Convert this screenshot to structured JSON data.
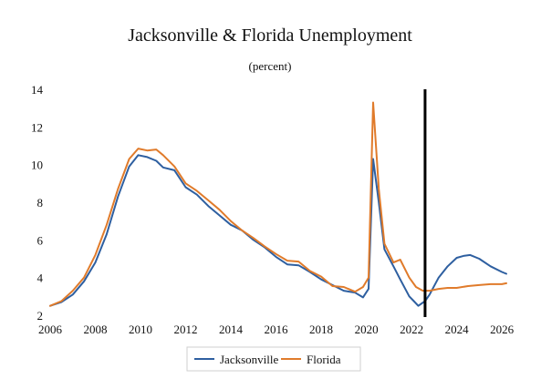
{
  "chart_data": {
    "type": "line",
    "title": "Jacksonville & Florida Unemployment",
    "subtitle": "(percent)",
    "xlabel": "",
    "ylabel": "",
    "xlim": [
      2006,
      2026.4
    ],
    "ylim": [
      2,
      14
    ],
    "x_ticks": [
      2006,
      2008,
      2010,
      2012,
      2014,
      2016,
      2018,
      2020,
      2022,
      2024,
      2026
    ],
    "y_ticks": [
      2,
      4,
      6,
      8,
      10,
      12,
      14
    ],
    "grid": false,
    "legend_position": "bottom-center",
    "marker_line": {
      "x": 2022.6,
      "color": "#000000"
    },
    "series": [
      {
        "name": "Jacksonville",
        "color": "#2e5fa0",
        "points": [
          [
            2006.0,
            2.5
          ],
          [
            2006.5,
            2.7
          ],
          [
            2007.0,
            3.1
          ],
          [
            2007.5,
            3.8
          ],
          [
            2008.0,
            4.8
          ],
          [
            2008.5,
            6.3
          ],
          [
            2009.0,
            8.3
          ],
          [
            2009.5,
            9.9
          ],
          [
            2009.9,
            10.5
          ],
          [
            2010.3,
            10.4
          ],
          [
            2010.7,
            10.2
          ],
          [
            2011.0,
            9.85
          ],
          [
            2011.5,
            9.7
          ],
          [
            2012.0,
            8.8
          ],
          [
            2012.5,
            8.4
          ],
          [
            2013.0,
            7.8
          ],
          [
            2013.5,
            7.3
          ],
          [
            2014.0,
            6.8
          ],
          [
            2014.5,
            6.5
          ],
          [
            2015.0,
            6.0
          ],
          [
            2015.5,
            5.6
          ],
          [
            2016.0,
            5.1
          ],
          [
            2016.5,
            4.7
          ],
          [
            2017.0,
            4.65
          ],
          [
            2017.5,
            4.3
          ],
          [
            2018.0,
            3.9
          ],
          [
            2018.5,
            3.6
          ],
          [
            2019.0,
            3.3
          ],
          [
            2019.5,
            3.2
          ],
          [
            2019.85,
            2.95
          ],
          [
            2020.1,
            3.4
          ],
          [
            2020.3,
            10.3
          ],
          [
            2020.55,
            8.0
          ],
          [
            2020.8,
            5.5
          ],
          [
            2021.2,
            4.6
          ],
          [
            2021.5,
            3.9
          ],
          [
            2021.9,
            3.0
          ],
          [
            2022.1,
            2.75
          ],
          [
            2022.3,
            2.5
          ],
          [
            2022.6,
            2.75
          ],
          [
            2022.8,
            3.1
          ],
          [
            2023.2,
            4.0
          ],
          [
            2023.6,
            4.6
          ],
          [
            2024.0,
            5.05
          ],
          [
            2024.3,
            5.15
          ],
          [
            2024.6,
            5.2
          ],
          [
            2025.0,
            5.0
          ],
          [
            2025.5,
            4.6
          ],
          [
            2026.0,
            4.3
          ],
          [
            2026.2,
            4.2
          ]
        ]
      },
      {
        "name": "Florida",
        "color": "#e07b2b",
        "points": [
          [
            2006.0,
            2.5
          ],
          [
            2006.5,
            2.75
          ],
          [
            2007.0,
            3.3
          ],
          [
            2007.5,
            4.0
          ],
          [
            2008.0,
            5.2
          ],
          [
            2008.5,
            6.8
          ],
          [
            2009.0,
            8.7
          ],
          [
            2009.5,
            10.3
          ],
          [
            2009.9,
            10.85
          ],
          [
            2010.3,
            10.75
          ],
          [
            2010.7,
            10.8
          ],
          [
            2011.0,
            10.5
          ],
          [
            2011.5,
            9.9
          ],
          [
            2012.0,
            9.0
          ],
          [
            2012.5,
            8.6
          ],
          [
            2013.0,
            8.1
          ],
          [
            2013.5,
            7.6
          ],
          [
            2014.0,
            7.0
          ],
          [
            2014.5,
            6.5
          ],
          [
            2015.0,
            6.1
          ],
          [
            2015.5,
            5.65
          ],
          [
            2016.0,
            5.25
          ],
          [
            2016.5,
            4.9
          ],
          [
            2017.0,
            4.85
          ],
          [
            2017.5,
            4.35
          ],
          [
            2018.0,
            4.05
          ],
          [
            2018.5,
            3.55
          ],
          [
            2019.0,
            3.5
          ],
          [
            2019.5,
            3.25
          ],
          [
            2019.85,
            3.5
          ],
          [
            2020.1,
            4.0
          ],
          [
            2020.3,
            13.3
          ],
          [
            2020.55,
            8.7
          ],
          [
            2020.8,
            5.8
          ],
          [
            2021.2,
            4.8
          ],
          [
            2021.5,
            4.95
          ],
          [
            2021.9,
            4.0
          ],
          [
            2022.2,
            3.5
          ],
          [
            2022.5,
            3.3
          ],
          [
            2022.8,
            3.3
          ],
          [
            2023.2,
            3.4
          ],
          [
            2023.6,
            3.45
          ],
          [
            2024.0,
            3.45
          ],
          [
            2024.5,
            3.55
          ],
          [
            2025.0,
            3.6
          ],
          [
            2025.5,
            3.65
          ],
          [
            2026.0,
            3.65
          ],
          [
            2026.2,
            3.7
          ]
        ]
      }
    ]
  }
}
